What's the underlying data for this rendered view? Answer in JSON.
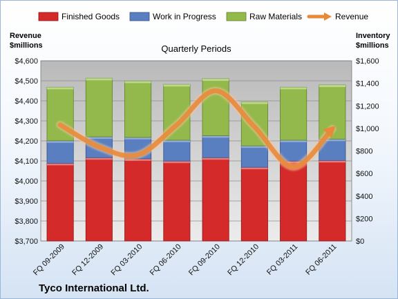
{
  "chart_data": {
    "type": "bar",
    "stacked": true,
    "title": "Quarterly Periods",
    "footer": "Tyco International Ltd.",
    "categories": [
      "FQ 09-2009",
      "FQ 12-2009",
      "FQ 03-2010",
      "FQ 06-2010",
      "FQ 09-2010",
      "FQ 12-2010",
      "FQ 03-2011",
      "FQ 06-2011"
    ],
    "left_axis": {
      "label_line1": "Revenue",
      "label_line2": "$millions",
      "min": 3700,
      "max": 4600,
      "step": 100,
      "ticks": [
        "$3,700",
        "$3,800",
        "$3,900",
        "$4,000",
        "$4,100",
        "$4,200",
        "$4,300",
        "$4,400",
        "$4,500",
        "$4,600"
      ]
    },
    "right_axis": {
      "label_line1": "Inventory",
      "label_line2": "$millions",
      "min": 0,
      "max": 1600,
      "step": 200,
      "ticks": [
        "$0",
        "$200",
        "$400",
        "$600",
        "$800",
        "$1,000",
        "$1,200",
        "$1,400",
        "$1,600"
      ]
    },
    "grid": true,
    "legend_position": "top",
    "series": [
      {
        "name": "Finished Goods",
        "axis": "right",
        "kind": "bar",
        "color": "#d42a2a",
        "values": [
          690,
          740,
          730,
          710,
          740,
          655,
          710,
          715
        ]
      },
      {
        "name": "Work in Progress",
        "axis": "right",
        "kind": "bar",
        "color": "#5a7fc0",
        "values": [
          200,
          185,
          190,
          185,
          195,
          190,
          185,
          190
        ]
      },
      {
        "name": "Raw Materials",
        "axis": "right",
        "kind": "bar",
        "color": "#93b94c",
        "values": [
          475,
          520,
          500,
          495,
          505,
          390,
          470,
          480
        ]
      },
      {
        "name": "Revenue",
        "axis": "left",
        "kind": "line",
        "color": "#e8893a",
        "values": [
          4280,
          4170,
          4130,
          4280,
          4450,
          4270,
          4070,
          4260
        ]
      }
    ]
  }
}
